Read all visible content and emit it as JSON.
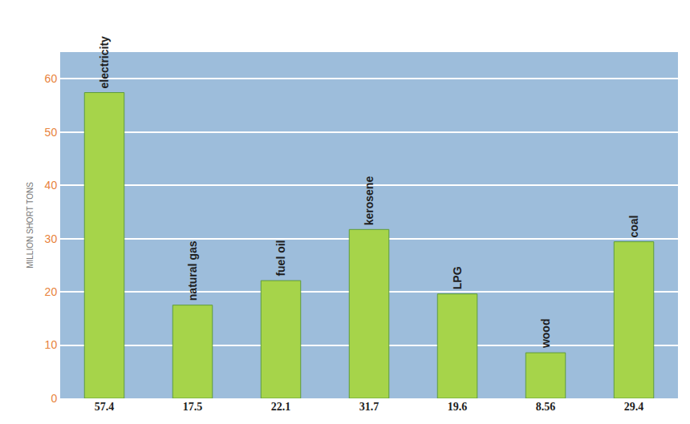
{
  "chart_data": {
    "type": "bar",
    "y_label": "MILLION SHORT TONS",
    "categories": [
      "electricity",
      "natural gas",
      "fuel oil",
      "kerosene",
      "LPG",
      "wood",
      "coal"
    ],
    "values": [
      57.4,
      17.5,
      22.1,
      31.7,
      19.6,
      8.56,
      29.4
    ],
    "color": "#a6d44a",
    "ylim": [
      0,
      65
    ],
    "yticks": [
      0,
      10,
      20,
      30,
      40,
      50,
      60
    ],
    "grid": true,
    "data_labels": true
  }
}
